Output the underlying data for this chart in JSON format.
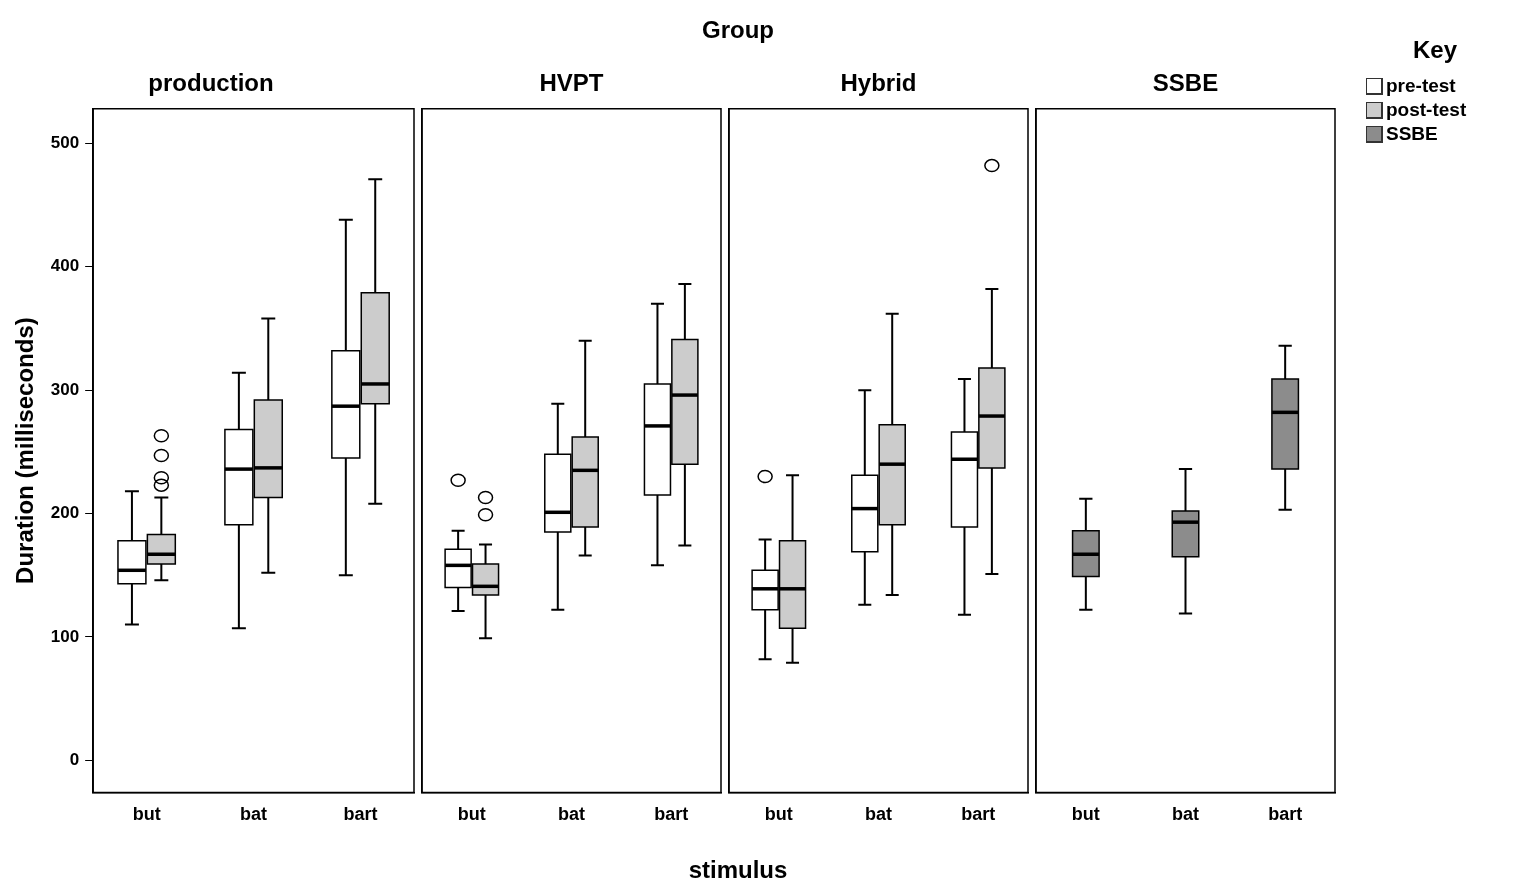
{
  "chart_data": [
    {
      "type": "box",
      "title": "production",
      "ylabel": "Duration (milliseconds)",
      "legend": "right",
      "legend_title": "Key",
      "marker": "circle",
      "categories": [
        "but",
        "bat",
        "bart"
      ],
      "ylim": [
        -26,
        528
      ],
      "yticks": [
        0,
        100,
        200,
        300,
        400,
        500
      ],
      "grid": false,
      "series": [
        {
          "name": "pre-test",
          "color": "#ffffff",
          "boxes": [
            {
              "low": 110,
              "q1": 143,
              "median": 154,
              "q3": 178,
              "high": 218
            },
            {
              "low": 107,
              "q1": 191,
              "median": 236,
              "q3": 268,
              "high": 314
            },
            {
              "low": 150,
              "q1": 245,
              "median": 287,
              "q3": 332,
              "high": 438
            }
          ]
        },
        {
          "name": "post-test",
          "color": "#cccccc",
          "boxes": [
            {
              "low": 146,
              "q1": 159,
              "median": 167,
              "q3": 183,
              "high": 213,
              "outliers": [
                223,
                229,
                247,
                263
              ]
            },
            {
              "low": 152,
              "q1": 213,
              "median": 237,
              "q3": 292,
              "high": 358
            },
            {
              "low": 208,
              "q1": 289,
              "median": 305,
              "q3": 379,
              "high": 471
            }
          ]
        }
      ]
    },
    {
      "type": "box",
      "title": "HVPT",
      "marker": "circle",
      "categories": [
        "but",
        "bat",
        "bart"
      ],
      "ylim": [
        -26,
        528
      ],
      "yticks": [
        0,
        100,
        200,
        300,
        400,
        500
      ],
      "grid": false,
      "tick_labels": "x",
      "series": [
        {
          "color": "#ffffff",
          "boxes": [
            {
              "low": 121,
              "q1": 140,
              "median": 158,
              "q3": 171,
              "high": 186,
              "outliers": [
                227
              ]
            },
            {
              "low": 122,
              "q1": 185,
              "median": 201,
              "q3": 248,
              "high": 289
            },
            {
              "low": 158,
              "q1": 215,
              "median": 271,
              "q3": 305,
              "high": 370
            }
          ]
        },
        {
          "color": "#cccccc",
          "boxes": [
            {
              "low": 99,
              "q1": 134,
              "median": 141,
              "q3": 159,
              "high": 175,
              "outliers": [
                199,
                213
              ]
            },
            {
              "low": 166,
              "q1": 189,
              "median": 235,
              "q3": 262,
              "high": 340
            },
            {
              "low": 174,
              "q1": 240,
              "median": 296,
              "q3": 341,
              "high": 386
            }
          ]
        }
      ]
    },
    {
      "type": "box",
      "title": "Hybrid",
      "marker": "circle",
      "categories": [
        "but",
        "bat",
        "bart"
      ],
      "ylim": [
        -26,
        528
      ],
      "yticks": [
        0,
        100,
        200,
        300,
        400,
        500
      ],
      "grid": false,
      "tick_labels": "x",
      "series": [
        {
          "color": "#ffffff",
          "boxes": [
            {
              "low": 82,
              "q1": 122,
              "median": 139,
              "q3": 154,
              "high": 179,
              "outliers": [
                230
              ]
            },
            {
              "low": 126,
              "q1": 169,
              "median": 204,
              "q3": 231,
              "high": 300
            },
            {
              "low": 118,
              "q1": 189,
              "median": 244,
              "q3": 266,
              "high": 309
            }
          ]
        },
        {
          "color": "#cccccc",
          "boxes": [
            {
              "low": 79,
              "q1": 107,
              "median": 139,
              "q3": 178,
              "high": 231
            },
            {
              "low": 134,
              "q1": 191,
              "median": 240,
              "q3": 272,
              "high": 362
            },
            {
              "low": 151,
              "q1": 237,
              "median": 279,
              "q3": 318,
              "high": 382,
              "outliers": [
                482
              ]
            }
          ]
        }
      ]
    },
    {
      "type": "box",
      "title": "SSBE",
      "legend": "right",
      "categories": [
        "but",
        "bat",
        "bart"
      ],
      "ylim": [
        -26,
        528
      ],
      "yticks": [
        0,
        100,
        200,
        300,
        400,
        500
      ],
      "grid": false,
      "tick_labels": "x",
      "series": [
        {
          "name": "SSBE",
          "color": "#8c8c8c",
          "boxes": [
            {
              "low": 122,
              "q1": 149,
              "median": 167,
              "q3": 186,
              "high": 212
            },
            {
              "low": 119,
              "q1": 165,
              "median": 193,
              "q3": 202,
              "high": 236
            },
            {
              "low": 203,
              "q1": 236,
              "median": 282,
              "q3": 309,
              "high": 336
            }
          ]
        }
      ]
    },
    {
      "type": "other",
      "title": "Group",
      "xlabel": "stimulus"
    }
  ]
}
